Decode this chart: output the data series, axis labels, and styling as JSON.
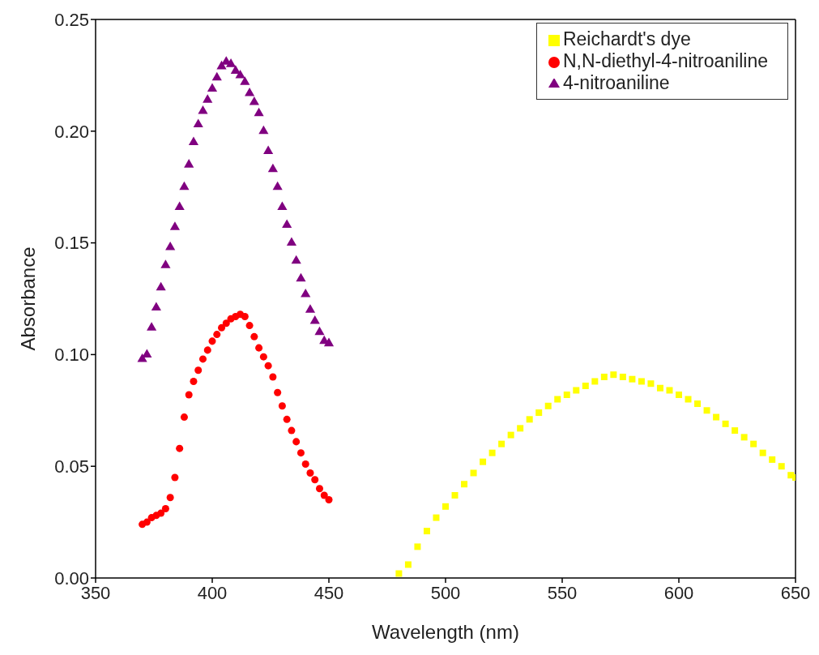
{
  "chart_data": {
    "type": "scatter",
    "xlabel": "Wavelength (nm)",
    "ylabel": "Absorbance",
    "xlim": [
      350,
      650
    ],
    "xticks": [
      350,
      400,
      450,
      500,
      550,
      600,
      650
    ],
    "ylim": [
      0,
      0.25
    ],
    "yticks": [
      {
        "value": 0,
        "label": "0.00"
      },
      0.05,
      {
        "value": 0.1,
        "label": "0.10"
      },
      0.15,
      {
        "value": 0.2,
        "label": "0.20"
      },
      0.25
    ],
    "grid": false,
    "legend": "top right",
    "series": [
      {
        "name": "Reichardt's dye",
        "color": "#ffff00",
        "marker": "square",
        "x": [
          480,
          484,
          488,
          492,
          496,
          500,
          504,
          508,
          512,
          516,
          520,
          524,
          528,
          532,
          536,
          540,
          544,
          548,
          552,
          556,
          560,
          564,
          568,
          572,
          576,
          580,
          584,
          588,
          592,
          596,
          600,
          604,
          608,
          612,
          616,
          620,
          624,
          628,
          632,
          636,
          640,
          644,
          648,
          650
        ],
        "values": [
          0.002,
          0.006,
          0.014,
          0.021,
          0.027,
          0.032,
          0.037,
          0.042,
          0.047,
          0.052,
          0.056,
          0.06,
          0.064,
          0.067,
          0.071,
          0.074,
          0.077,
          0.08,
          0.082,
          0.084,
          0.086,
          0.088,
          0.09,
          0.091,
          0.09,
          0.089,
          0.088,
          0.087,
          0.085,
          0.084,
          0.082,
          0.08,
          0.078,
          0.075,
          0.072,
          0.069,
          0.066,
          0.063,
          0.06,
          0.056,
          0.053,
          0.05,
          0.046,
          0.045
        ]
      },
      {
        "name": "N,N-diethyl-4-nitroaniline",
        "color": "#ff0000",
        "marker": "circle",
        "x": [
          370,
          372,
          374,
          376,
          378,
          380,
          382,
          384,
          386,
          388,
          390,
          392,
          394,
          396,
          398,
          400,
          402,
          404,
          406,
          408,
          410,
          412,
          414,
          416,
          418,
          420,
          422,
          424,
          426,
          428,
          430,
          432,
          434,
          436,
          438,
          440,
          442,
          444,
          446,
          448,
          450
        ],
        "values": [
          0.024,
          0.025,
          0.027,
          0.028,
          0.029,
          0.031,
          0.036,
          0.045,
          0.058,
          0.072,
          0.082,
          0.088,
          0.093,
          0.098,
          0.102,
          0.106,
          0.109,
          0.112,
          0.114,
          0.116,
          0.117,
          0.118,
          0.117,
          0.113,
          0.108,
          0.103,
          0.099,
          0.095,
          0.09,
          0.083,
          0.077,
          0.071,
          0.066,
          0.061,
          0.056,
          0.051,
          0.047,
          0.044,
          0.04,
          0.037,
          0.035
        ]
      },
      {
        "name": "4-nitroaniline",
        "color": "#800080",
        "marker": "triangle",
        "x": [
          370,
          372,
          374,
          376,
          378,
          380,
          382,
          384,
          386,
          388,
          390,
          392,
          394,
          396,
          398,
          400,
          402,
          404,
          406,
          408,
          410,
          412,
          414,
          416,
          418,
          420,
          422,
          424,
          426,
          428,
          430,
          432,
          434,
          436,
          438,
          440,
          442,
          444,
          446,
          448,
          450
        ],
        "values": [
          0.098,
          0.1,
          0.112,
          0.121,
          0.13,
          0.14,
          0.148,
          0.157,
          0.166,
          0.175,
          0.185,
          0.195,
          0.203,
          0.209,
          0.214,
          0.219,
          0.224,
          0.229,
          0.231,
          0.23,
          0.227,
          0.225,
          0.222,
          0.217,
          0.213,
          0.208,
          0.2,
          0.191,
          0.183,
          0.175,
          0.166,
          0.158,
          0.15,
          0.142,
          0.134,
          0.127,
          0.12,
          0.115,
          0.11,
          0.106,
          0.105
        ]
      }
    ]
  }
}
